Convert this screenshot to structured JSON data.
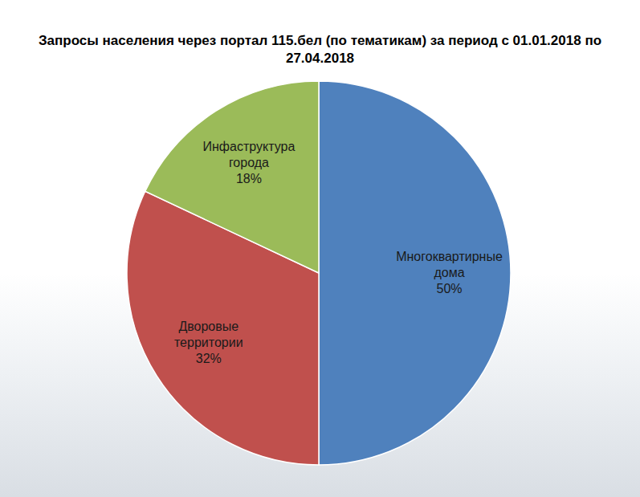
{
  "chart_data": {
    "type": "pie",
    "title": "Запросы населения через портал 115.бел (по тематикам) за период с 01.01.2018 по 27.04.2018",
    "categories": [
      "Многоквартирные дома",
      "Дворовые территории",
      "Инфаструктура города"
    ],
    "values": [
      50,
      32,
      18
    ],
    "value_labels": [
      "50%",
      "32%",
      "18%"
    ],
    "colors": [
      "#4f81bd",
      "#c0504d",
      "#9bbb59"
    ],
    "data_labels": true
  }
}
